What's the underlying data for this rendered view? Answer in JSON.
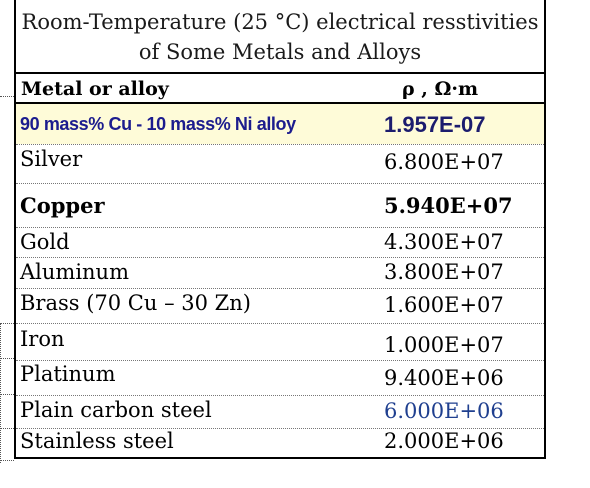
{
  "table": {
    "title_line1": "Room-Temperature (25 °C) electrical resstivities",
    "title_line2": "of Some Metals and Alloys",
    "header": {
      "col1": "Metal or alloy",
      "col2": "ρ , Ω·m"
    },
    "rows": [
      {
        "name": "90 mass% Cu - 10 mass% Ni alloy",
        "value": "1.957E-07"
      },
      {
        "name": "Silver",
        "value": "6.800E+07"
      },
      {
        "name": "Copper",
        "value": "5.940E+07"
      },
      {
        "name": "Gold",
        "value": "4.300E+07"
      },
      {
        "name": "Aluminum",
        "value": "3.800E+07"
      },
      {
        "name": "Brass (70 Cu – 30 Zn)",
        "value": "1.600E+07"
      },
      {
        "name": "Iron",
        "value": "1.000E+07"
      },
      {
        "name": "Platinum",
        "value": "9.400E+06"
      },
      {
        "name": "Plain carbon steel",
        "value": "6.000E+06"
      },
      {
        "name": "Stainless steel",
        "value": "2.000E+06"
      }
    ]
  },
  "colors": {
    "highlight_background": "#fefbd8",
    "highlight_text": "#1c1c8e",
    "blue_value": "#1f3f8f"
  }
}
